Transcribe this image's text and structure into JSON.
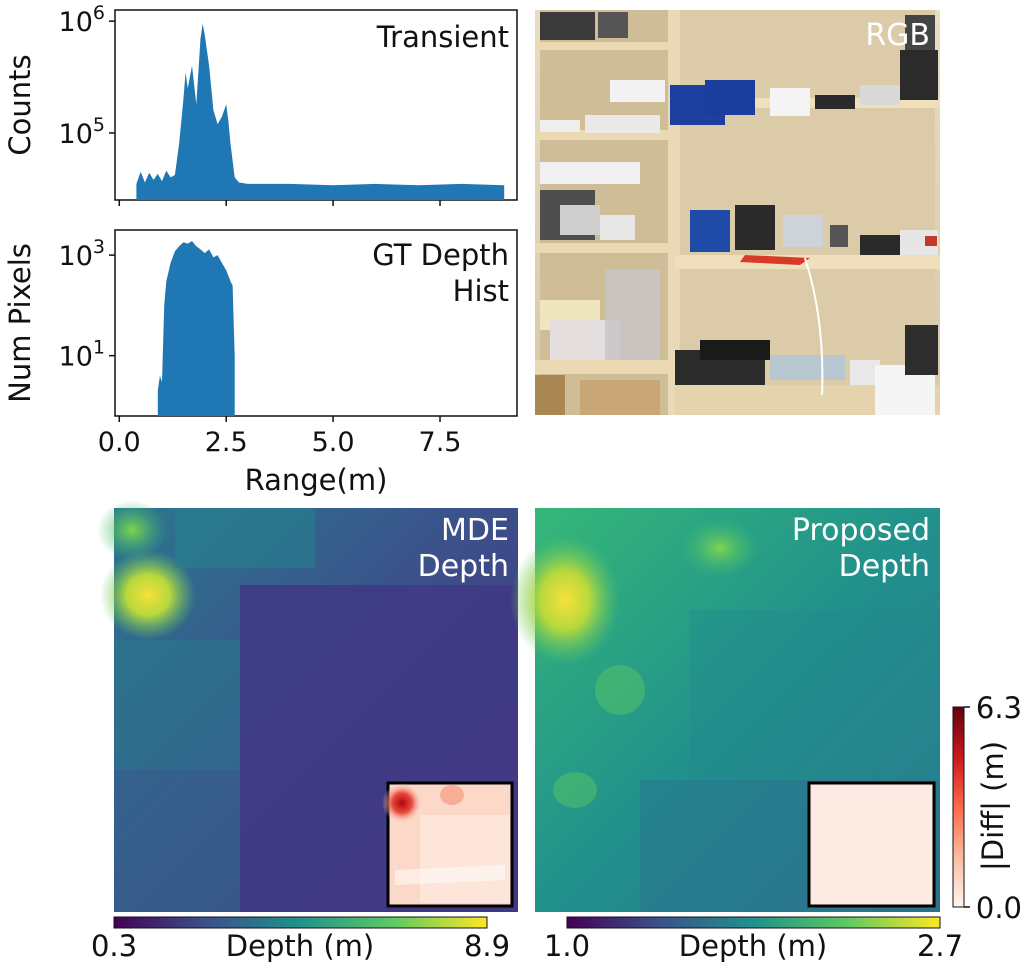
{
  "chart_data": [
    {
      "id": "transient",
      "type": "area",
      "title": "Transient",
      "ylabel": "Counts",
      "xlabel": "",
      "yscale": "log",
      "ylim_exp": [
        4.4,
        6.1
      ],
      "xlim": [
        -0.1,
        9.3
      ],
      "yticks": [
        {
          "exp": 6,
          "base": "10",
          "sup": "6"
        },
        {
          "exp": 5,
          "base": "10",
          "sup": "5"
        }
      ],
      "x": [
        0.4,
        0.5,
        0.6,
        0.7,
        0.8,
        0.9,
        1.0,
        1.1,
        1.2,
        1.3,
        1.4,
        1.5,
        1.55,
        1.6,
        1.7,
        1.8,
        1.9,
        1.95,
        2.0,
        2.1,
        2.2,
        2.3,
        2.4,
        2.5,
        2.55,
        2.6,
        2.7,
        2.8,
        3.0,
        4.0,
        5.0,
        6.0,
        7.0,
        8.0,
        9.0
      ],
      "values": [
        35000,
        45000,
        36000,
        44000,
        38000,
        43000,
        37000,
        46000,
        40000,
        42000,
        80000,
        200000,
        350000,
        250000,
        400000,
        180000,
        700000,
        950000,
        750000,
        400000,
        160000,
        120000,
        140000,
        180000,
        130000,
        80000,
        40000,
        36000,
        35000,
        35000,
        34000,
        35000,
        34000,
        35000,
        34000
      ],
      "color": "#1f77b4"
    },
    {
      "id": "gt_depth_hist",
      "type": "area",
      "title": "GT Depth\nHist",
      "title_lines": [
        "GT Depth",
        "Hist"
      ],
      "ylabel": "Num Pixels",
      "xlabel": "Range(m)",
      "yscale": "log",
      "ylim_exp": [
        -0.2,
        3.5
      ],
      "xlim": [
        -0.1,
        9.3
      ],
      "yticks": [
        {
          "exp": 3,
          "base": "10",
          "sup": "3"
        },
        {
          "exp": 1,
          "base": "10",
          "sup": "1"
        }
      ],
      "xticks": [
        0.0,
        2.5,
        5.0,
        7.5
      ],
      "xtick_labels": [
        "0.0",
        "2.5",
        "5.0",
        "7.5"
      ],
      "x": [
        0.9,
        0.95,
        1.0,
        1.05,
        1.1,
        1.2,
        1.3,
        1.4,
        1.5,
        1.6,
        1.7,
        1.8,
        1.9,
        2.0,
        2.1,
        2.2,
        2.3,
        2.4,
        2.5,
        2.6,
        2.65,
        2.7
      ],
      "values": [
        2,
        4,
        3,
        100,
        300,
        700,
        1200,
        1500,
        1800,
        1700,
        1900,
        1500,
        1300,
        1100,
        1300,
        900,
        1000,
        700,
        500,
        300,
        250,
        10
      ],
      "color": "#1f77b4"
    },
    {
      "id": "mde_depth",
      "type": "heatmap",
      "title_lines": [
        "MDE",
        "Depth"
      ],
      "colormap": "viridis",
      "colorbar_label": "Depth (m)",
      "colorbar_min": "0.3",
      "colorbar_max": "8.9"
    },
    {
      "id": "proposed_depth",
      "type": "heatmap",
      "title_lines": [
        "Proposed",
        "Depth"
      ],
      "colormap": "viridis",
      "colorbar_label": "Depth (m)",
      "colorbar_min": "1.0",
      "colorbar_max": "2.7"
    },
    {
      "id": "diff_colorbar",
      "type": "heatmap",
      "colormap": "reds",
      "colorbar_label": "|Diff| (m)",
      "colorbar_min": "0.0",
      "colorbar_max": "6.3"
    }
  ],
  "rgb_panel": {
    "label": "RGB"
  },
  "colors": {
    "viridis": [
      "#440154",
      "#3b528b",
      "#21918c",
      "#5ec962",
      "#fde725"
    ],
    "reds": [
      "#fff5f0",
      "#fcbba1",
      "#fb6a4a",
      "#cb181d",
      "#67000d"
    ]
  }
}
